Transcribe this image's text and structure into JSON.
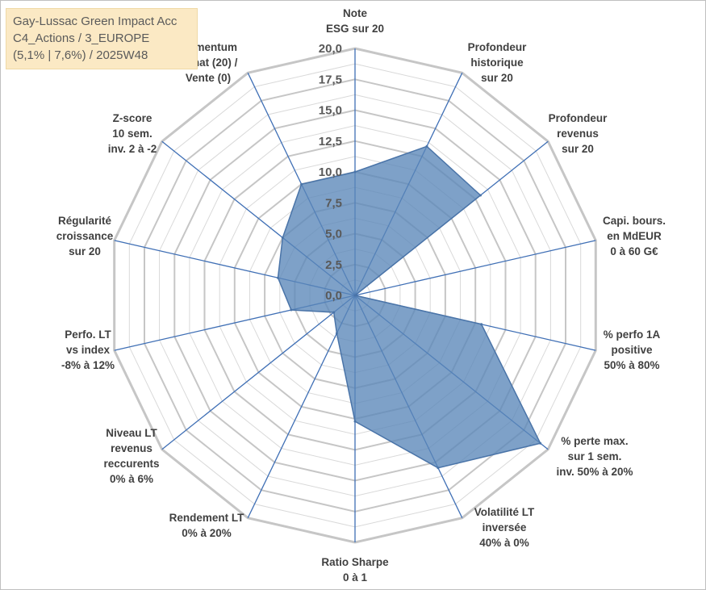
{
  "title": {
    "line1": "Gay-Lussac Green Impact Acc",
    "line2": "C4_Actions / 3_EUROPE",
    "line3": "(5,1% | 7,6%) / 2025W48"
  },
  "colors": {
    "fill": "#5a86b8",
    "stroke": "#4a74a8",
    "axis": "#3f6fb5",
    "ring": "#c6c6c6",
    "inner_ring": "#d9d9d9"
  },
  "chart_data": {
    "type": "radar",
    "title": "",
    "rlim": [
      0,
      20
    ],
    "ticks": [
      "0,0",
      "2,5",
      "5,0",
      "7,5",
      "10,0",
      "12,5",
      "15,0",
      "17,5",
      "20,0"
    ],
    "grid": true,
    "axes": [
      {
        "label": [
          "Note",
          "ESG sur 20"
        ]
      },
      {
        "label": [
          "Profondeur",
          "historique",
          "sur 20"
        ]
      },
      {
        "label": [
          "Profondeur",
          "revenus",
          "sur 20"
        ]
      },
      {
        "label": [
          "Capi. bours.",
          "en MdEUR",
          "0 à 60 G€"
        ]
      },
      {
        "label": [
          "% perfo 1A",
          "positive",
          "50% à 80%"
        ]
      },
      {
        "label": [
          "% perte max.",
          "sur 1 sem.",
          "inv. 50% à 20%"
        ]
      },
      {
        "label": [
          "Volatilité LT",
          "inversée",
          "40% à 0%"
        ]
      },
      {
        "label": [
          "Ratio Sharpe",
          "0 à 1"
        ]
      },
      {
        "label": [
          "Rendement LT",
          "0% à 20%"
        ]
      },
      {
        "label": [
          "Niveau LT",
          "revenus",
          "reccurents",
          "0% à 6%"
        ]
      },
      {
        "label": [
          "Perfo. LT",
          "vs index",
          "-8% à 12%"
        ]
      },
      {
        "label": [
          "Régularité",
          "croissance",
          "sur 20"
        ]
      },
      {
        "label": [
          "Z-score",
          "10 sem.",
          "inv. 2 à -2"
        ]
      },
      {
        "label": [
          "Momentum",
          "Achat (20) /",
          "Vente (0)"
        ]
      }
    ],
    "series": [
      {
        "values": [
          10.0,
          13.4,
          13.0,
          0.0,
          10.5,
          19.2,
          15.5,
          10.2,
          3.4,
          2.2,
          5.3,
          6.4,
          7.5,
          10.0
        ]
      }
    ]
  }
}
